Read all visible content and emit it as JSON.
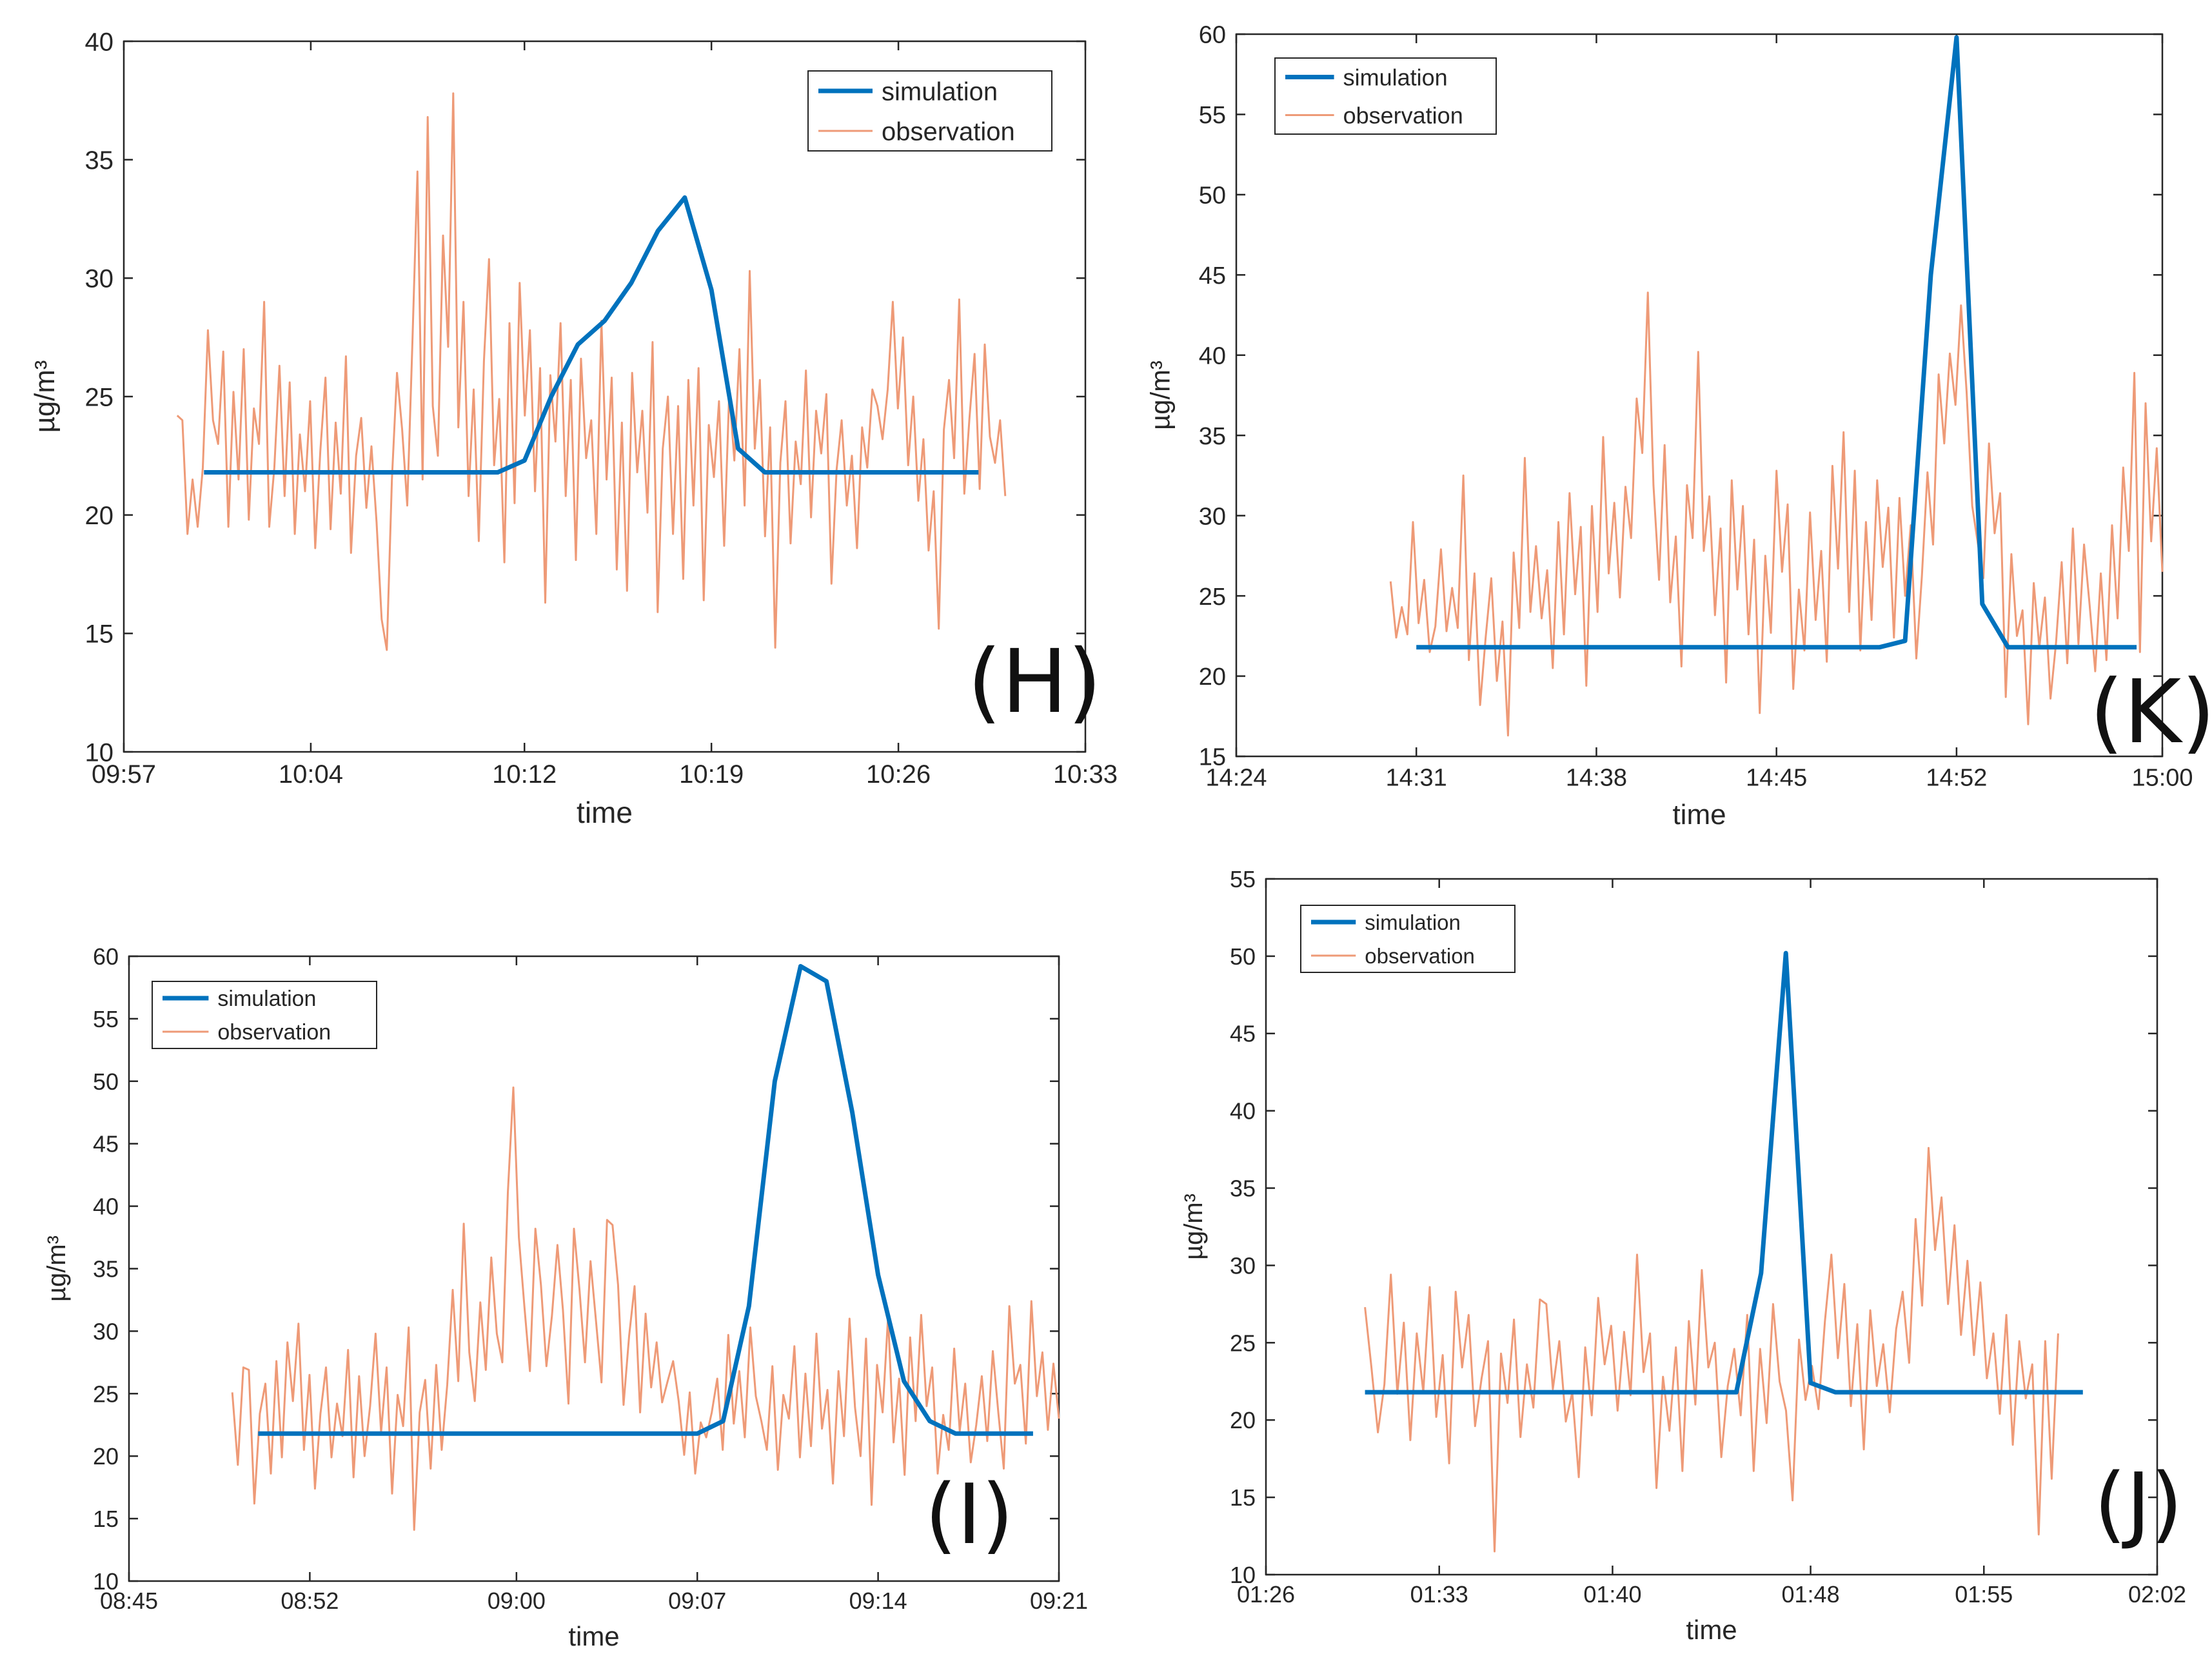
{
  "figure": {
    "colors": {
      "simulation": "#0072BD",
      "observation": "#EE9A77",
      "axis": "#262626",
      "background": "#ffffff"
    },
    "legend_labels": [
      "simulation",
      "observation"
    ]
  },
  "chart_data": [
    {
      "id": "H",
      "type": "line",
      "panel_label": "(H)",
      "xlabel": "time",
      "ylabel": "µg/m³",
      "ylim": [
        10,
        40
      ],
      "yticks": [
        10,
        15,
        20,
        25,
        30,
        35,
        40
      ],
      "x_range": [
        "09:57",
        "10:33"
      ],
      "xticks": [
        "09:57",
        "10:04",
        "10:12",
        "10:19",
        "10:26",
        "10:33"
      ],
      "legend_position": "top-right",
      "series": [
        {
          "name": "simulation",
          "x": [
            "10:00",
            "10:11",
            "10:12",
            "10:13",
            "10:14",
            "10:15",
            "10:16",
            "10:17",
            "10:18",
            "10:19",
            "10:20",
            "10:21",
            "10:29"
          ],
          "y": [
            21.8,
            21.8,
            22.3,
            25.0,
            27.2,
            28.2,
            29.8,
            32.0,
            33.4,
            29.5,
            22.8,
            21.8,
            21.8
          ]
        },
        {
          "name": "observation",
          "x_start": "09:59",
          "x_end": "10:30",
          "y": [
            24.2,
            24.0,
            19.2,
            21.5,
            19.5,
            22.0,
            27.8,
            24.0,
            23.0,
            26.9,
            19.5,
            25.2,
            21.5,
            27.0,
            19.8,
            24.5,
            23.0,
            29.0,
            19.5,
            22.0,
            26.3,
            20.8,
            25.6,
            19.2,
            23.4,
            21.0,
            24.8,
            18.6,
            22.7,
            25.8,
            19.4,
            23.9,
            20.9,
            26.7,
            18.4,
            22.5,
            24.1,
            20.3,
            22.9,
            19.7,
            15.6,
            14.3,
            21.5,
            26.0,
            23.6,
            20.4,
            27.2,
            34.5,
            21.5,
            36.8,
            24.6,
            22.5,
            31.8,
            27.1,
            37.8,
            23.7,
            29.0,
            20.8,
            25.3,
            18.9,
            26.5,
            30.8,
            22.1,
            24.9,
            18.0,
            28.1,
            20.5,
            29.8,
            24.2,
            27.8,
            21.0,
            26.2,
            16.3,
            25.9,
            23.1,
            28.1,
            20.8,
            25.7,
            18.1,
            26.6,
            22.4,
            24.0,
            19.2,
            28.2,
            21.5,
            25.8,
            17.7,
            23.9,
            16.8,
            26.0,
            21.8,
            24.4,
            20.1,
            27.3,
            15.9,
            22.8,
            25.0,
            19.2,
            24.6,
            17.3,
            25.7,
            20.4,
            26.2,
            16.4,
            23.8,
            21.6,
            24.8,
            18.7,
            25.2,
            22.3,
            27.0,
            20.4,
            30.3,
            22.8,
            25.7,
            19.1,
            23.7,
            14.4,
            22.2,
            24.8,
            18.8,
            23.1,
            21.3,
            26.1,
            19.9,
            24.4,
            22.6,
            25.1,
            17.1,
            21.9,
            24.0,
            20.4,
            22.5,
            18.6,
            23.7,
            22.0,
            25.3,
            24.6,
            23.2,
            25.3,
            29.0,
            24.5,
            27.5,
            22.1,
            25.0,
            20.6,
            23.2,
            18.5,
            21.0,
            15.2,
            23.6,
            25.7,
            22.4,
            29.1,
            20.9,
            24.1,
            26.8,
            21.1,
            27.2,
            23.3,
            22.2,
            24.0,
            20.8
          ]
        }
      ]
    },
    {
      "id": "K",
      "type": "line",
      "panel_label": "(K)",
      "xlabel": "time",
      "ylabel": "µg/m³",
      "ylim": [
        15,
        60
      ],
      "yticks": [
        15,
        20,
        25,
        30,
        35,
        40,
        45,
        50,
        55,
        60
      ],
      "x_range": [
        "14:24",
        "15:00"
      ],
      "xticks": [
        "14:24",
        "14:31",
        "14:38",
        "14:45",
        "14:52",
        "15:00"
      ],
      "legend_position": "top-left",
      "series": [
        {
          "name": "simulation",
          "x": [
            "14:31",
            "14:49",
            "14:50",
            "14:51",
            "14:52",
            "14:53",
            "14:54",
            "14:59"
          ],
          "y": [
            21.8,
            21.8,
            22.2,
            45.0,
            59.8,
            24.5,
            21.8,
            21.8
          ]
        },
        {
          "name": "observation",
          "x_start": "14:30",
          "x_end": "15:00",
          "y": [
            25.9,
            22.4,
            24.3,
            22.6,
            29.6,
            23.3,
            26.0,
            21.5,
            23.1,
            27.9,
            22.8,
            25.5,
            23.0,
            32.5,
            21.0,
            26.4,
            18.2,
            22.4,
            26.1,
            19.7,
            23.4,
            16.3,
            27.7,
            23.0,
            33.6,
            24.0,
            28.1,
            23.6,
            26.6,
            20.5,
            29.6,
            22.6,
            31.4,
            25.1,
            29.3,
            19.4,
            30.6,
            24.0,
            34.9,
            26.4,
            30.8,
            24.9,
            31.8,
            28.6,
            37.3,
            33.9,
            43.9,
            31.9,
            26.0,
            34.4,
            24.6,
            28.7,
            20.6,
            31.9,
            28.6,
            40.2,
            27.8,
            31.2,
            23.8,
            29.2,
            19.6,
            32.2,
            25.4,
            30.6,
            22.6,
            28.5,
            17.7,
            27.5,
            22.7,
            32.8,
            26.5,
            30.7,
            19.2,
            25.4,
            21.6,
            30.2,
            23.5,
            27.8,
            20.9,
            33.1,
            26.7,
            35.2,
            24.0,
            32.8,
            21.6,
            29.6,
            23.5,
            32.2,
            26.8,
            30.5,
            22.4,
            31.1,
            25.0,
            29.4,
            21.1,
            26.2,
            32.7,
            28.2,
            38.8,
            34.5,
            40.1,
            36.9,
            43.1,
            37.7,
            30.6,
            28.3,
            26.1,
            34.5,
            28.9,
            31.4,
            18.7,
            27.6,
            22.5,
            24.1,
            17.0,
            25.8,
            21.8,
            24.9,
            18.6,
            22.1,
            27.1,
            20.8,
            29.2,
            22.0,
            28.2,
            24.4,
            20.3,
            26.4,
            21.0,
            29.4,
            23.6,
            33.0,
            27.8,
            38.9,
            21.5,
            37.0,
            28.4,
            34.2,
            26.5
          ]
        }
      ]
    },
    {
      "id": "I",
      "type": "line",
      "panel_label": "(I)",
      "xlabel": "time",
      "ylabel": "µg/m³",
      "ylim": [
        10,
        60
      ],
      "yticks": [
        10,
        15,
        20,
        25,
        30,
        35,
        40,
        45,
        50,
        55,
        60
      ],
      "x_range": [
        "08:45",
        "09:21"
      ],
      "xticks": [
        "08:45",
        "08:52",
        "09:00",
        "09:07",
        "09:14",
        "09:21"
      ],
      "legend_position": "top-left",
      "series": [
        {
          "name": "simulation",
          "x": [
            "08:50",
            "09:06",
            "09:07",
            "09:08",
            "09:09",
            "09:10",
            "09:11",
            "09:12",
            "09:13",
            "09:14",
            "09:15",
            "09:16",
            "09:17",
            "09:20"
          ],
          "y": [
            21.8,
            21.8,
            21.8,
            22.8,
            32.0,
            50.0,
            59.2,
            58.0,
            47.5,
            34.5,
            26.0,
            22.8,
            21.8,
            21.8
          ]
        },
        {
          "name": "observation",
          "x_start": "08:49",
          "x_end": "09:21",
          "y": [
            25.1,
            19.3,
            27.1,
            26.9,
            16.2,
            23.4,
            25.8,
            18.6,
            27.6,
            19.9,
            29.1,
            24.4,
            30.6,
            20.5,
            26.5,
            17.4,
            23.4,
            27.1,
            19.9,
            24.2,
            21.6,
            28.5,
            18.3,
            26.4,
            20.0,
            24.0,
            29.8,
            21.9,
            27.1,
            17.0,
            24.9,
            22.4,
            30.3,
            14.1,
            23.5,
            26.1,
            19.0,
            27.3,
            20.5,
            25.7,
            33.3,
            26.0,
            38.6,
            28.3,
            24.4,
            32.3,
            26.9,
            35.9,
            29.8,
            27.5,
            41.1,
            49.5,
            37.5,
            32.0,
            26.8,
            38.2,
            33.7,
            27.2,
            31.2,
            36.9,
            31.7,
            24.2,
            38.2,
            33.3,
            27.5,
            35.6,
            30.8,
            25.9,
            38.9,
            38.5,
            33.7,
            24.1,
            29.6,
            33.6,
            23.5,
            31.4,
            25.5,
            29.1,
            24.3,
            26.0,
            27.6,
            24.4,
            20.1,
            25.1,
            18.6,
            22.7,
            21.5,
            23.5,
            26.2,
            20.5,
            29.7,
            22.6,
            26.8,
            21.5,
            30.3,
            24.8,
            22.8,
            20.5,
            27.2,
            18.9,
            24.9,
            23.0,
            28.8,
            19.9,
            26.6,
            20.8,
            29.8,
            22.2,
            25.3,
            17.8,
            26.8,
            21.6,
            31.0,
            23.9,
            20.0,
            29.4,
            16.1,
            27.3,
            23.5,
            31.2,
            21.1,
            26.2,
            18.5,
            29.5,
            22.8,
            31.3,
            24.0,
            27.1,
            18.6,
            23.3,
            20.5,
            28.6,
            22.0,
            25.8,
            19.5,
            22.5,
            26.4,
            21.2,
            28.4,
            23.5,
            19.0,
            32.0,
            25.8,
            27.3,
            21.0,
            32.4,
            24.8,
            28.3,
            22.1,
            27.4,
            23.0
          ]
        }
      ]
    },
    {
      "id": "J",
      "type": "line",
      "panel_label": "(J)",
      "xlabel": "time",
      "ylabel": "µg/m³",
      "ylim": [
        10,
        55
      ],
      "yticks": [
        10,
        15,
        20,
        25,
        30,
        35,
        40,
        45,
        50,
        55
      ],
      "x_range": [
        "01:26",
        "02:02"
      ],
      "xticks": [
        "01:26",
        "01:33",
        "01:40",
        "01:48",
        "01:55",
        "02:02"
      ],
      "legend_position": "top-left",
      "series": [
        {
          "name": "simulation",
          "x": [
            "01:30",
            "01:45",
            "01:46",
            "01:47",
            "01:48",
            "01:49",
            "01:59"
          ],
          "y": [
            21.8,
            21.8,
            29.5,
            50.2,
            22.4,
            21.8,
            21.8
          ]
        },
        {
          "name": "observation",
          "x_start": "01:30",
          "x_end": "01:58",
          "y": [
            27.3,
            23.4,
            19.2,
            22.3,
            29.4,
            21.7,
            26.3,
            18.7,
            25.6,
            21.8,
            28.6,
            20.2,
            24.2,
            17.2,
            28.3,
            23.4,
            26.8,
            19.6,
            22.7,
            25.1,
            11.5,
            24.3,
            21.1,
            26.5,
            18.9,
            23.6,
            20.8,
            27.8,
            27.5,
            22.0,
            25.1,
            19.9,
            21.8,
            16.3,
            24.7,
            20.3,
            27.9,
            23.6,
            26.1,
            20.6,
            25.7,
            21.6,
            30.7,
            23.1,
            25.6,
            15.6,
            22.8,
            19.3,
            24.7,
            16.7,
            26.4,
            21.0,
            29.7,
            23.4,
            25.0,
            17.6,
            22.2,
            24.6,
            20.3,
            26.8,
            16.7,
            24.6,
            19.8,
            27.5,
            22.5,
            20.6,
            14.8,
            25.2,
            21.3,
            23.5,
            20.7,
            26.4,
            30.7,
            24.0,
            28.8,
            20.9,
            26.2,
            18.1,
            27.1,
            22.2,
            24.9,
            20.5,
            25.9,
            28.3,
            23.7,
            33.0,
            27.4,
            37.6,
            31.0,
            34.4,
            27.5,
            32.6,
            25.5,
            30.3,
            24.2,
            28.9,
            22.7,
            25.6,
            20.4,
            26.8,
            18.4,
            25.1,
            21.4,
            23.6,
            12.6,
            25.1,
            16.2,
            25.6
          ]
        }
      ]
    }
  ]
}
